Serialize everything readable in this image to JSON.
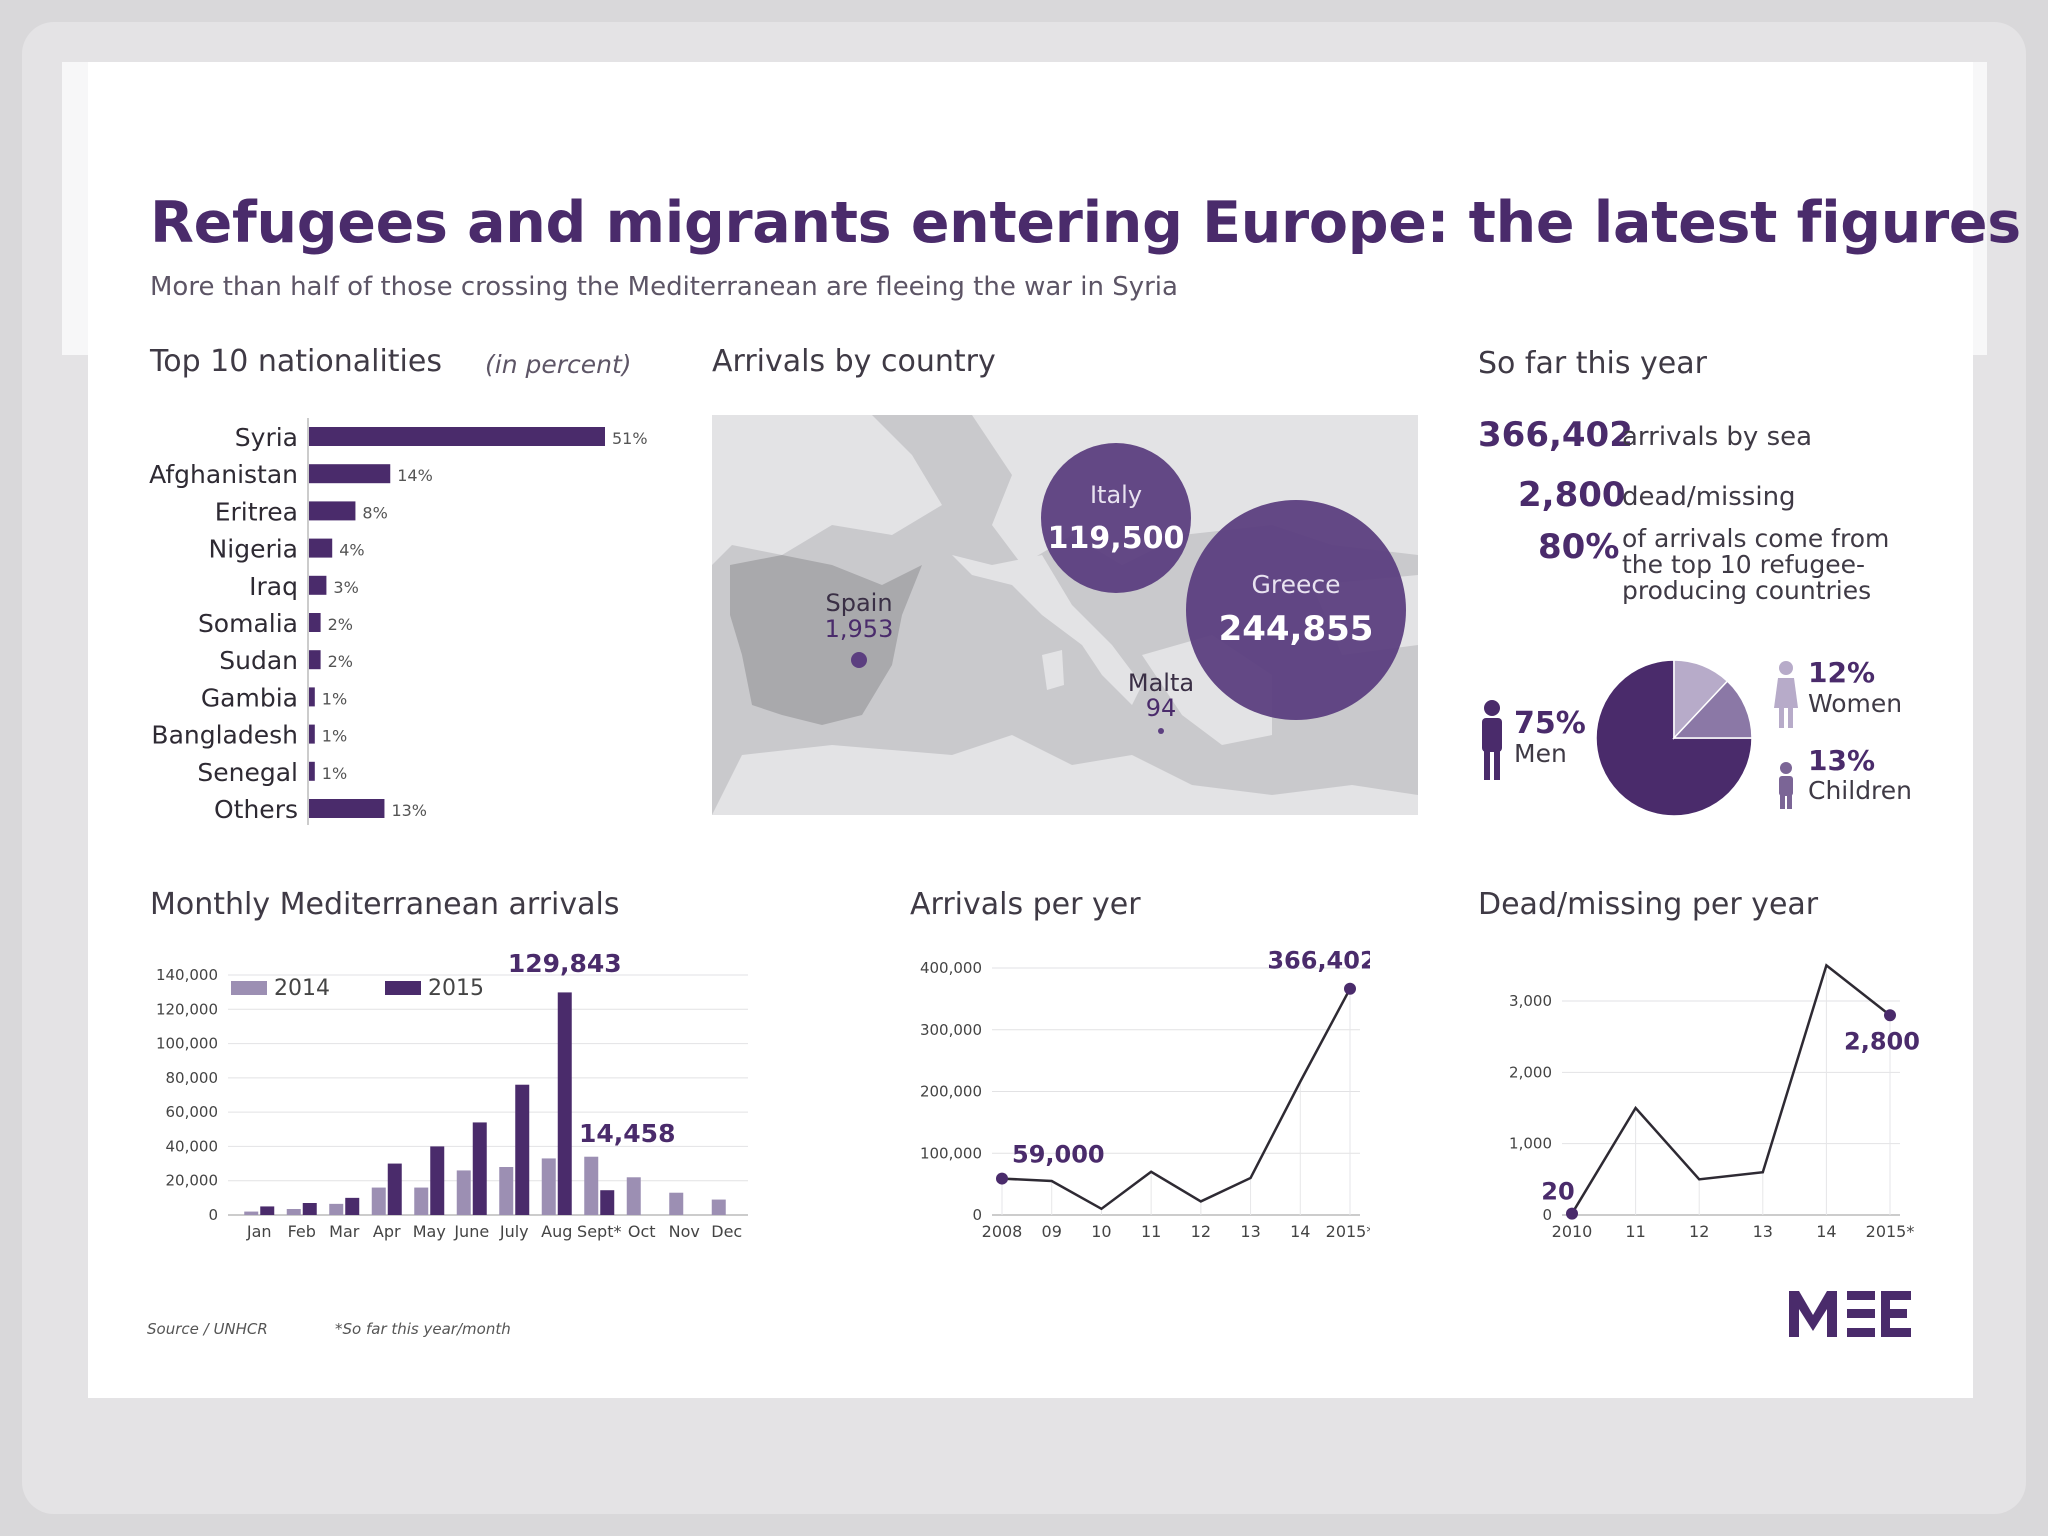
{
  "title": "Refugees and migrants entering Europe: the latest figures",
  "subtitle": "More than half of those crossing the Mediterranean are fleeing the war in Syria",
  "colors": {
    "dark_purple": "#4a2b6b",
    "light_purple": "#9c8fb3",
    "mid_purple": "#7b6596",
    "map_grey": "#c9c9cc",
    "land_dark": "#b2b2b5"
  },
  "nationalities": {
    "title": "Top 10 nationalities",
    "note": "(in percent)"
  },
  "map": {
    "title": "Arrivals by country",
    "countries": [
      {
        "name": "Italy",
        "value": "119,500"
      },
      {
        "name": "Greece",
        "value": "244,855"
      },
      {
        "name": "Spain",
        "value": "1,953"
      },
      {
        "name": "Malta",
        "value": "94"
      }
    ]
  },
  "so_far": {
    "title": "So far this year",
    "stats": [
      {
        "value": "366,402",
        "label": "arrivals by sea"
      },
      {
        "value": "2,800",
        "label": "dead/missing"
      },
      {
        "value": "80%",
        "label_lines": [
          "of arrivals come from",
          "the top 10 refugee-",
          "producing countries"
        ]
      }
    ],
    "men": {
      "pct": "75%",
      "label": "Men"
    },
    "women": {
      "pct": "12%",
      "label": "Women"
    },
    "children": {
      "pct": "13%",
      "label": "Children"
    }
  },
  "monthly": {
    "title": "Monthly Mediterranean arrivals"
  },
  "per_year": {
    "title": "Arrivals per yer"
  },
  "dead_year": {
    "title": "Dead/missing per year"
  },
  "footer": {
    "source": "Source / UNHCR",
    "note": "*So far this year/month",
    "logo": "MEE"
  },
  "chart_data": [
    {
      "type": "bar",
      "title": "Top 10 nationalities",
      "subtitle": "(in percent)",
      "categories": [
        "Syria",
        "Afghanistan",
        "Eritrea",
        "Nigeria",
        "Iraq",
        "Somalia",
        "Sudan",
        "Gambia",
        "Bangladesh",
        "Senegal",
        "Others"
      ],
      "values": [
        51,
        14,
        8,
        4,
        3,
        2,
        2,
        1,
        1,
        1,
        13
      ],
      "value_labels": [
        "51%",
        "14%",
        "8%",
        "4%",
        "3%",
        "2%",
        "2%",
        "1%",
        "1%",
        "1%",
        "13%"
      ]
    },
    {
      "type": "pie",
      "slices": [
        {
          "label": "Men",
          "value": 75
        },
        {
          "label": "Women",
          "value": 12
        },
        {
          "label": "Children",
          "value": 13
        }
      ]
    },
    {
      "type": "bar",
      "title": "Monthly Mediterranean arrivals",
      "categories": [
        "Jan",
        "Feb",
        "Mar",
        "Apr",
        "May",
        "June",
        "July",
        "Aug",
        "Sept*",
        "Oct",
        "Nov",
        "Dec"
      ],
      "series": [
        {
          "name": "2014",
          "values": [
            2000,
            3500,
            6500,
            16000,
            16000,
            26000,
            28000,
            33000,
            34000,
            22000,
            13000,
            9000
          ]
        },
        {
          "name": "2015",
          "values": [
            5000,
            7000,
            10000,
            30000,
            40000,
            54000,
            76000,
            129843,
            14458,
            null,
            null,
            null
          ]
        }
      ],
      "ylim": [
        0,
        140000
      ],
      "yticks": [
        "0",
        "20,000",
        "40,000",
        "60,000",
        "80,000",
        "100,000",
        "120,000",
        "140,000"
      ],
      "annotations": [
        "129,843",
        "14,458"
      ],
      "legend": "top-left"
    },
    {
      "type": "line",
      "title": "Arrivals per yer",
      "x": [
        "2008",
        "09",
        "10",
        "11",
        "12",
        "13",
        "14",
        "2015*"
      ],
      "values": [
        59000,
        55000,
        10000,
        70000,
        22000,
        60000,
        216000,
        366402
      ],
      "ylim": [
        0,
        400000
      ],
      "yticks": [
        "0",
        "100,000",
        "200,000",
        "300,000",
        "400,000"
      ],
      "annotations": [
        "59,000",
        "366,402"
      ]
    },
    {
      "type": "line",
      "title": "Dead/missing per year",
      "x": [
        "2010",
        "11",
        "12",
        "13",
        "14",
        "2015*"
      ],
      "values": [
        20,
        1500,
        500,
        600,
        3500,
        2800
      ],
      "ylim": [
        0,
        3000
      ],
      "yticks": [
        "0",
        "1,000",
        "2,000",
        "3,000"
      ],
      "annotations": [
        "20",
        "2,800"
      ]
    }
  ]
}
